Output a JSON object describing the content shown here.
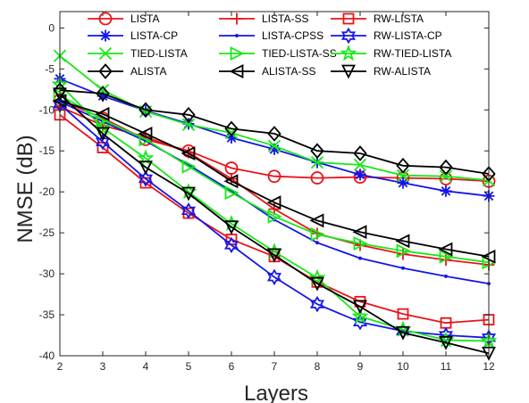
{
  "chart_data": {
    "type": "line",
    "xlabel": "Layers",
    "ylabel": "NMSE (dB)",
    "x": [
      2,
      3,
      4,
      5,
      6,
      7,
      8,
      9,
      10,
      11,
      12
    ],
    "xlim": [
      2,
      12
    ],
    "ylim": [
      -40,
      2
    ],
    "xticks": [
      "2",
      "3",
      "4",
      "5",
      "6",
      "7",
      "8",
      "9",
      "10",
      "11",
      "12"
    ],
    "yticks": [
      "0",
      "-5",
      "-10",
      "-15",
      "-20",
      "-25",
      "-30",
      "-35",
      "-40"
    ],
    "grid": false,
    "legend_position": "top, inside plot, 3 columns",
    "series": [
      {
        "name": "LISTA",
        "color": "#e8141a",
        "marker": "circle",
        "values": [
          -8.8,
          -11.0,
          -13.6,
          -15.0,
          -17.1,
          -18.1,
          -18.3,
          -18.2,
          -18.3,
          -18.4,
          -18.7
        ]
      },
      {
        "name": "LISTA-SS",
        "color": "#e8141a",
        "marker": "plus",
        "values": [
          -9.6,
          -11.9,
          -13.3,
          -15.2,
          -18.4,
          -22.1,
          -25.1,
          -26.5,
          -27.6,
          -28.3,
          -28.9
        ]
      },
      {
        "name": "RW-LISTA",
        "color": "#e8141a",
        "marker": "square",
        "values": [
          -10.6,
          -14.6,
          -18.9,
          -22.6,
          -25.8,
          -27.9,
          -31.0,
          -33.4,
          -34.9,
          -36.0,
          -35.6
        ]
      },
      {
        "name": "LISTA-CP",
        "color": "#1515e8",
        "marker": "asterisk",
        "values": [
          -6.2,
          -8.3,
          -10.1,
          -11.7,
          -13.4,
          -14.8,
          -16.4,
          -17.9,
          -18.9,
          -19.9,
          -20.5
        ]
      },
      {
        "name": "LISTA-CPSS",
        "color": "#1515e8",
        "marker": "dot",
        "values": [
          -9.0,
          -11.4,
          -13.8,
          -16.7,
          -19.9,
          -23.4,
          -26.2,
          -28.1,
          -29.3,
          -30.3,
          -31.2
        ]
      },
      {
        "name": "RW-LISTA-CP",
        "color": "#1515e8",
        "marker": "hexagram",
        "values": [
          -9.3,
          -13.9,
          -18.4,
          -22.3,
          -26.5,
          -30.4,
          -33.7,
          -35.9,
          -37.0,
          -37.5,
          -37.8
        ]
      },
      {
        "name": "TIED-LISTA",
        "color": "#18e818",
        "marker": "x",
        "values": [
          -3.4,
          -7.6,
          -10.2,
          -11.8,
          -12.8,
          -14.4,
          -16.4,
          -16.7,
          -18.0,
          -18.1,
          -18.6
        ]
      },
      {
        "name": "TIED-LISTA-SS",
        "color": "#18e818",
        "marker": "triangle-right",
        "values": [
          -8.2,
          -11.2,
          -13.6,
          -16.9,
          -20.1,
          -23.0,
          -25.2,
          -26.3,
          -27.2,
          -27.9,
          -28.6
        ]
      },
      {
        "name": "RW-TIED-LISTA",
        "color": "#18e818",
        "marker": "pentagram",
        "values": [
          -6.9,
          -12.2,
          -15.9,
          -20.0,
          -23.9,
          -27.3,
          -30.5,
          -35.2,
          -36.8,
          -38.1,
          -38.2
        ]
      },
      {
        "name": "ALISTA",
        "color": "#000000",
        "marker": "diamond",
        "values": [
          -7.6,
          -8.0,
          -10.0,
          -10.6,
          -12.3,
          -12.9,
          -15.0,
          -15.3,
          -16.8,
          -17.0,
          -17.8
        ]
      },
      {
        "name": "ALISTA-SS",
        "color": "#000000",
        "marker": "triangle-left",
        "values": [
          -8.9,
          -10.5,
          -12.9,
          -15.3,
          -18.7,
          -21.3,
          -23.5,
          -24.9,
          -26.0,
          -27.0,
          -27.9
        ]
      },
      {
        "name": "RW-ALISTA",
        "color": "#000000",
        "marker": "triangle-down",
        "values": [
          -8.1,
          -12.9,
          -17.0,
          -20.2,
          -24.3,
          -27.7,
          -31.2,
          -34.0,
          -37.2,
          -38.4,
          -39.7
        ]
      }
    ]
  }
}
